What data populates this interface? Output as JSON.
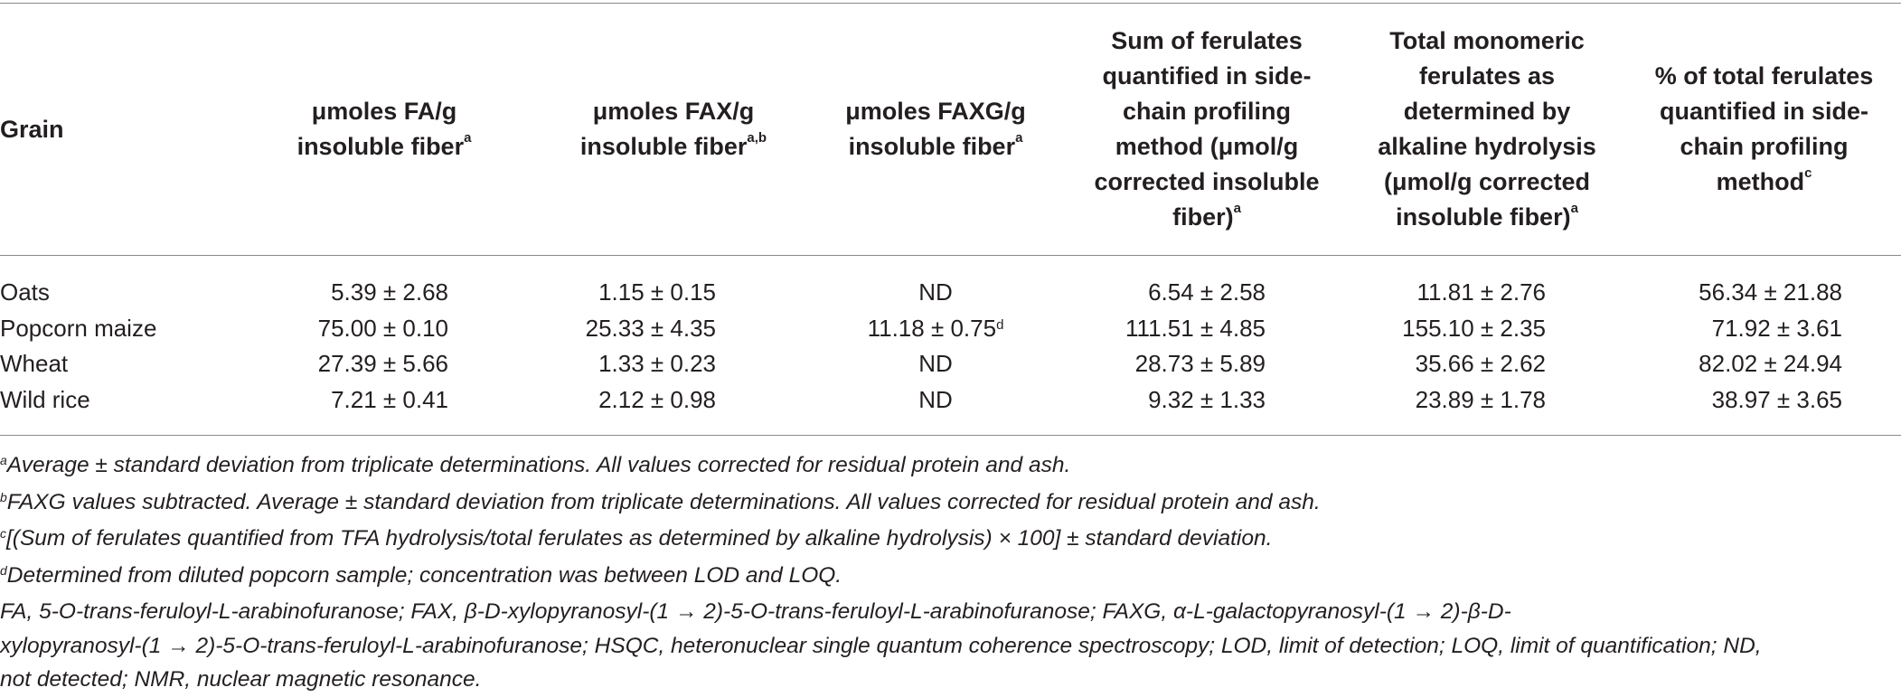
{
  "header": {
    "grain": "Grain",
    "col1_text": "μmoles FA/g insoluble fiber",
    "col1_sup": "a",
    "col2_text": "μmoles FAX/g insoluble fiber",
    "col2_sup": "a,b",
    "col3_text": "μmoles FAXG/g insoluble fiber",
    "col3_sup": "a",
    "col4_text": "Sum of ferulates quantified in side-chain profiling method (μmol/g corrected insoluble fiber)",
    "col4_sup": "a",
    "col5_text": "Total monomeric ferulates as determined by alkaline hydrolysis (μmol/g corrected insoluble fiber)",
    "col5_sup": "a",
    "col6_text": "% of total ferulates quantified in side-chain profiling method",
    "col6_sup": "c"
  },
  "rows": [
    {
      "grain": "Oats",
      "fa": "5.39 ± 2.68",
      "fax": "1.15 ± 0.15",
      "faxg": "ND",
      "faxg_sup": "",
      "sum": "6.54 ± 2.58",
      "total": "11.81 ± 2.76",
      "pct": "56.34 ± 21.88"
    },
    {
      "grain": "Popcorn maize",
      "fa": "75.00 ± 0.10",
      "fax": "25.33 ± 4.35",
      "faxg": "11.18 ± 0.75",
      "faxg_sup": "d",
      "sum": "111.51 ± 4.85",
      "total": "155.10 ± 2.35",
      "pct": "71.92 ± 3.61"
    },
    {
      "grain": "Wheat",
      "fa": "27.39 ± 5.66",
      "fax": "1.33 ± 0.23",
      "faxg": "ND",
      "faxg_sup": "",
      "sum": "28.73 ± 5.89",
      "total": "35.66 ± 2.62",
      "pct": "82.02 ± 24.94"
    },
    {
      "grain": "Wild rice",
      "fa": "7.21 ± 0.41",
      "fax": "2.12 ± 0.98",
      "faxg": "ND",
      "faxg_sup": "",
      "sum": "9.32 ± 1.33",
      "total": "23.89 ± 1.78",
      "pct": "38.97 ± 3.65"
    }
  ],
  "footnotes": {
    "a_mark": "a",
    "a_text": "Average ± standard deviation from triplicate determinations. All values corrected for residual protein and ash.",
    "b_mark": "b",
    "b_text": "FAXG values subtracted. Average ± standard deviation from triplicate determinations. All values corrected for residual protein and ash.",
    "c_mark": "c",
    "c_text": "[(Sum of ferulates quantified from TFA hydrolysis/total ferulates as determined by alkaline hydrolysis) × 100] ± standard deviation.",
    "d_mark": "d",
    "d_text": "Determined from diluted popcorn sample; concentration was between LOD and LOQ.",
    "abbrev_line1": "FA, 5-O-trans-feruloyl-L-arabinofuranose; FAX, β-D-xylopyranosyl-(1 → 2)-5-O-trans-feruloyl-L-arabinofuranose; FAXG, α-L-galactopyranosyl-(1 → 2)-β-D-",
    "abbrev_line2": "xylopyranosyl-(1 → 2)-5-O-trans-feruloyl-L-arabinofuranose; HSQC, heteronuclear single quantum coherence spectroscopy; LOD, limit of detection; LOQ, limit of quantification; ND,",
    "abbrev_line3": "not detected; NMR, nuclear magnetic resonance."
  }
}
